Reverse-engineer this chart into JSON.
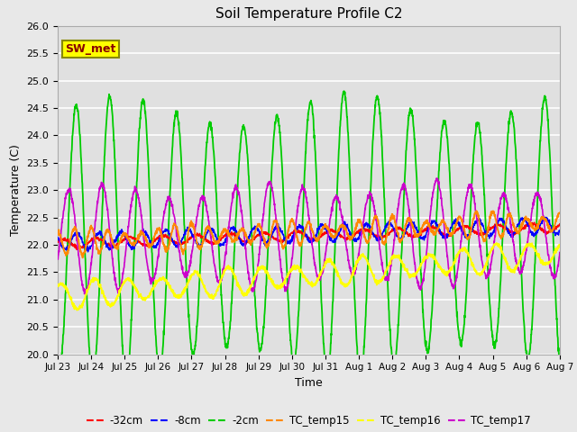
{
  "title": "Soil Temperature Profile C2",
  "xlabel": "Time",
  "ylabel": "Temperature (C)",
  "ylim": [
    20.0,
    26.0
  ],
  "yticks": [
    20.0,
    20.5,
    21.0,
    21.5,
    22.0,
    22.5,
    23.0,
    23.5,
    24.0,
    24.5,
    25.0,
    25.5,
    26.0
  ],
  "xtick_labels": [
    "Jul 23",
    "Jul 24",
    "Jul 25",
    "Jul 26",
    "Jul 27",
    "Jul 28",
    "Jul 29",
    "Jul 30",
    "Jul 31",
    "Aug 1",
    "Aug 2",
    "Aug 3",
    "Aug 4",
    "Aug 5",
    "Aug 6",
    "Aug 7"
  ],
  "series_colors": {
    "neg32cm": "#ff0000",
    "neg8cm": "#0000ff",
    "neg2cm": "#00cc00",
    "TC_temp15": "#ff8800",
    "TC_temp16": "#ffff00",
    "TC_temp17": "#cc00cc"
  },
  "legend_labels": [
    "-32cm",
    "-8cm",
    "-2cm",
    "TC_temp15",
    "TC_temp16",
    "TC_temp17"
  ],
  "annotation_text": "SW_met",
  "annotation_box_facecolor": "#ffff00",
  "annotation_box_edgecolor": "#888800",
  "annotation_text_color": "#880000",
  "fig_facecolor": "#e8e8e8",
  "axes_facecolor": "#e0e0e0",
  "grid_color": "#ffffff",
  "n_days": 15,
  "points_per_day": 144
}
